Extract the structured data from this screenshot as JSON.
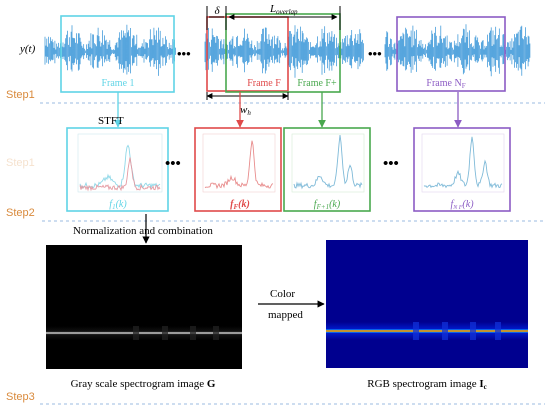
{
  "signal_label": "y(t)",
  "ellipsis": "•••",
  "frames": {
    "frame1": "Frame 1",
    "frameF": "Frame F",
    "frameF1": "Frame F+",
    "frameNF": "Frame N",
    "frameNF_sub": "F"
  },
  "annotations": {
    "delta": "δ",
    "overlap_L": "L",
    "overlap_sub": "overlap",
    "window_w": "w",
    "window_sub": "h"
  },
  "steps": [
    "Step1",
    "Step1",
    "Step2",
    "Step3"
  ],
  "stft_label": "STFT",
  "spectra": {
    "f1": {
      "name": "f",
      "sub": "1",
      "tail": "(k)"
    },
    "fF": {
      "name": "f",
      "sub": "F",
      "tail": "(k)"
    },
    "fF1": {
      "name": "f",
      "sub": "F+1",
      "tail": "(k)"
    },
    "fNF": {
      "name": "f",
      "sub": "N F",
      "tail": "(k)"
    }
  },
  "normalization_label": "Normalization and combination",
  "color_mapped": {
    "line1": "Color",
    "line2": "mapped"
  },
  "gray_caption": {
    "text": "Gray scale spectrogram image ",
    "bold": "G"
  },
  "rgb_caption": {
    "text": "RGB spectrogram image ",
    "bold": "I",
    "sub": "c"
  },
  "colors": {
    "cyan": "#5fd4e6",
    "red": "#e04a4a",
    "green": "#49a84e",
    "purple": "#8c5cc4",
    "signal": "#2d8fd5",
    "step": "#d98a3c",
    "dashed": "#9bbbe0"
  }
}
